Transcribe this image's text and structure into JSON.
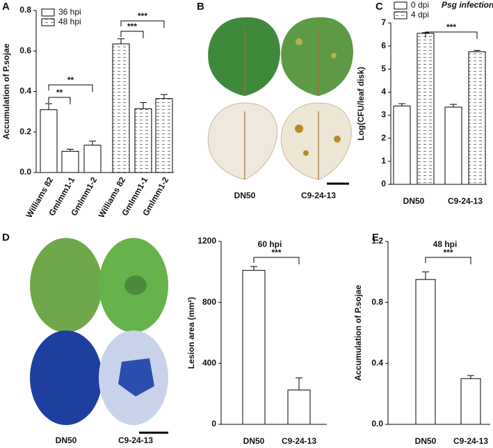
{
  "panel_labels": [
    "A",
    "B",
    "C",
    "D",
    "E"
  ],
  "photo_labels": {
    "B": [
      "DN50",
      "C9-24-13"
    ],
    "D": [
      "DN50",
      "C9-24-13"
    ]
  },
  "chart_data": [
    {
      "type": "bar",
      "ylabel": "Accumulation of P.sojae",
      "categories": [
        "Williams 82",
        "Gmlmm1-1",
        "Gmlmm1-2",
        "Williams 82",
        "Gmlmm1-1",
        "Gmlmm1-2"
      ],
      "series": [
        {
          "name": "36 hpi",
          "color": "#ffffff",
          "pattern": "none",
          "values": [
            0.31,
            0.105,
            0.135,
            null,
            null,
            null
          ],
          "errors": [
            0.03,
            0.01,
            0.02,
            null,
            null,
            null
          ]
        },
        {
          "name": "48 hpi",
          "color": "#ffffff",
          "pattern": "dash",
          "values": [
            null,
            null,
            null,
            0.635,
            0.315,
            0.365
          ],
          "errors": [
            null,
            null,
            null,
            0.025,
            0.03,
            0.02
          ]
        }
      ],
      "ylim": [
        0,
        0.8
      ],
      "yticks": [
        {
          "value": 0,
          "label": "0.0"
        },
        0.2,
        0.4,
        0.6,
        0.8
      ],
      "annotations": [
        "**",
        "**",
        "***",
        "***"
      ]
    },
    {
      "type": "bar",
      "ylabel": "Log(CFU/leaf disk)",
      "legend_title": "Psg infection",
      "categories": [
        "DN50",
        "C9-24-13"
      ],
      "series": [
        {
          "name": "0 dpi",
          "color": "#ffffff",
          "pattern": "none",
          "values": [
            3.4,
            3.35
          ],
          "errors": [
            0.1,
            0.12
          ]
        },
        {
          "name": "4 dpi",
          "color": "#ffffff",
          "pattern": "dash",
          "values": [
            6.55,
            5.75
          ],
          "errors": [
            0.03,
            0.06
          ]
        }
      ],
      "ylim": [
        0,
        7
      ],
      "yticks": [
        0,
        1,
        2,
        3,
        4,
        5,
        6,
        7
      ],
      "annotations": [
        "***"
      ]
    },
    {
      "type": "bar",
      "title": "60 hpi",
      "ylabel": "Lesion area (mm²)",
      "categories": [
        "DN50",
        "C9-24-13"
      ],
      "values": [
        1010,
        225
      ],
      "errors": [
        25,
        80
      ],
      "color": "#ffffff",
      "ylim": [
        0,
        1200
      ],
      "yticks": [
        0,
        400,
        800,
        1200
      ],
      "annotations": [
        "***"
      ]
    },
    {
      "type": "bar",
      "title": "48 hpi",
      "ylabel": "Accumulation of P.sojae",
      "categories": [
        "DN50",
        "C9-24-13"
      ],
      "values": [
        0.95,
        0.3
      ],
      "errors": [
        0.05,
        0.02
      ],
      "color": "#ffffff",
      "ylim": [
        0,
        1.2
      ],
      "yticks": [
        {
          "value": 0,
          "label": "0.0"
        },
        0.4,
        0.8,
        1.2
      ],
      "annotations": [
        "***"
      ]
    }
  ]
}
